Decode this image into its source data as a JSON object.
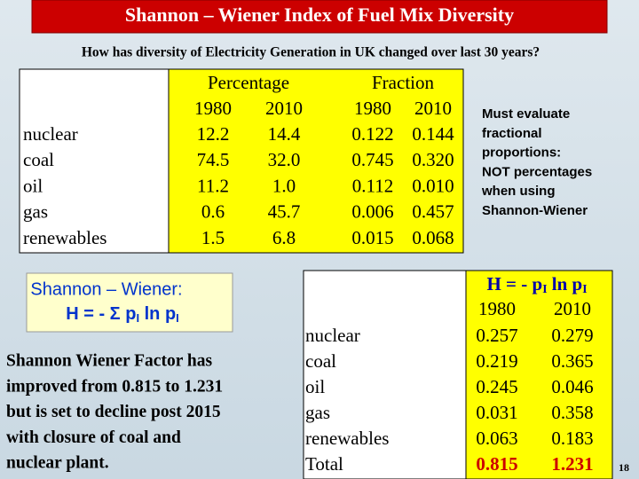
{
  "header": {
    "title": "Shannon – Wiener Index of Fuel Mix Diversity"
  },
  "subtitle": "How has diversity of Electricity Generation in UK changed over last 30 years?",
  "fuel_table": {
    "group_headers": [
      "Percentage",
      "Fraction"
    ],
    "years": [
      "1980",
      "2010",
      "1980",
      "2010"
    ],
    "rows": [
      [
        "nuclear",
        "12.2",
        "14.4",
        "0.122",
        "0.144"
      ],
      [
        "coal",
        "74.5",
        "32.0",
        "0.745",
        "0.320"
      ],
      [
        "oil",
        "11.2",
        "1.0",
        "0.112",
        "0.010"
      ],
      [
        "gas",
        "0.6",
        "45.7",
        "0.006",
        "0.457"
      ],
      [
        "renewables",
        "1.5",
        "6.8",
        "0.015",
        "0.068"
      ]
    ]
  },
  "note": {
    "lines": [
      "Must evaluate",
      "fractional",
      "proportions:",
      "NOT percentages",
      "when using",
      "Shannon-Wiener"
    ]
  },
  "formula_box": {
    "title": "Shannon – Wiener:",
    "formula": {
      "lead": "H = - Σ p",
      "sub1": "I",
      "mid": " ln p",
      "sub2": "I"
    }
  },
  "summary": {
    "lines": [
      "Shannon Wiener Factor has",
      "improved from 0.815 to 1.231",
      "but is set to decline post 2015",
      "with closure of coal and",
      "nuclear plant."
    ]
  },
  "index_table": {
    "heading": {
      "lead": "H = - p",
      "sub1": "I",
      "mid": " ln p",
      "sub2": "I"
    },
    "years": [
      "1980",
      "2010"
    ],
    "rows": [
      [
        "nuclear",
        "0.257",
        "0.279"
      ],
      [
        "coal",
        "0.219",
        "0.365"
      ],
      [
        "oil",
        "0.245",
        "0.046"
      ],
      [
        "gas",
        "0.031",
        "0.358"
      ],
      [
        "renewables",
        "0.063",
        "0.183"
      ]
    ],
    "total": [
      "Total",
      "0.815",
      "1.231"
    ]
  },
  "page_number": "18"
}
